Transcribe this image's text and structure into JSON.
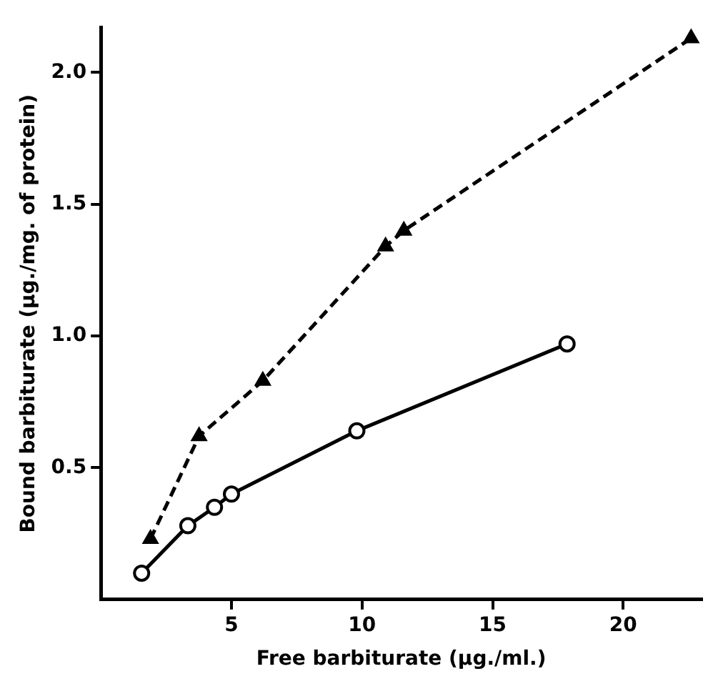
{
  "chart_data": {
    "type": "line",
    "xlabel": "Free barbiturate (µg./ml.)",
    "ylabel": "Bound barbiturate (µg./mg. of protein)",
    "xlim": [
      0,
      23
    ],
    "xticks": [
      5,
      10,
      15,
      20
    ],
    "ylim": [
      0,
      2.17
    ],
    "yticks": [
      0.5,
      {
        "value": 1,
        "label": "1.0"
      },
      1.5,
      {
        "value": 2,
        "label": "2.0"
      }
    ],
    "grid": false,
    "legend": false,
    "series": [
      {
        "color": "#000000",
        "marker": "circle",
        "line_style": "solid",
        "x": [
          1.56,
          3.33,
          4.35,
          5.0,
          9.8,
          17.85
        ],
        "values": [
          0.1,
          0.28,
          0.35,
          0.4,
          0.64,
          0.97
        ]
      },
      {
        "color": "#000000",
        "marker": "triangle",
        "line_style": "dashed",
        "x": [
          1.9,
          3.76,
          6.2,
          10.9,
          11.6,
          22.6
        ],
        "values": [
          0.23,
          0.62,
          0.83,
          1.34,
          1.4,
          2.13
        ]
      }
    ]
  }
}
